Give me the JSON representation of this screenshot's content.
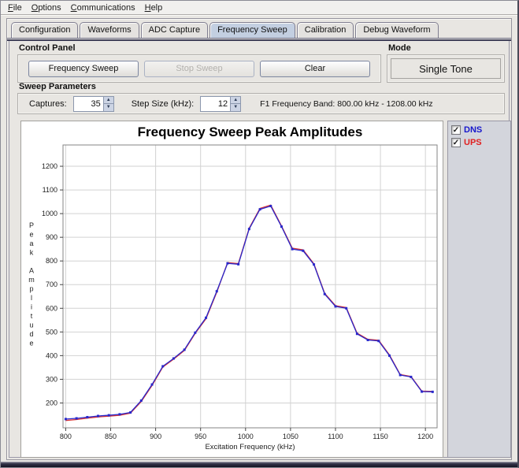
{
  "menu": {
    "items": [
      {
        "label": "File"
      },
      {
        "label": "Options"
      },
      {
        "label": "Communications"
      },
      {
        "label": "Help"
      }
    ]
  },
  "tabs": {
    "items": [
      "Configuration",
      "Waveforms",
      "ADC Capture",
      "Frequency Sweep",
      "Calibration",
      "Debug Waveform"
    ],
    "selected": "Frequency Sweep"
  },
  "control_panel": {
    "title": "Control Panel",
    "buttons": [
      {
        "label": "Frequency Sweep",
        "enabled": true
      },
      {
        "label": "Stop Sweep",
        "enabled": false
      },
      {
        "label": "Clear",
        "enabled": true
      }
    ]
  },
  "mode": {
    "title": "Mode",
    "value": "Single Tone"
  },
  "sweep_parameters": {
    "title": "Sweep Parameters",
    "captures_label": "Captures:",
    "captures_value": "35",
    "step_size_label": "Step Size (kHz):",
    "step_size_value": "12",
    "band_text": "F1 Frequency Band: 800.00 kHz - 1208.00 kHz"
  },
  "legend": {
    "items": [
      {
        "label": "DNS",
        "color": "#1616cc",
        "checked": true
      },
      {
        "label": "UPS",
        "color": "#e02020",
        "checked": true
      }
    ]
  },
  "chart_data": {
    "type": "line",
    "title": "Frequency Sweep Peak Amplitudes",
    "xlabel": "Excitation Frequency (kHz)",
    "ylabel": "Peak Amplitude",
    "xlim": [
      797,
      1213
    ],
    "ylim": [
      95,
      1290
    ],
    "xticks": [
      800,
      850,
      900,
      950,
      1000,
      1050,
      1100,
      1150,
      1200
    ],
    "yticks": [
      200,
      300,
      400,
      500,
      600,
      700,
      800,
      900,
      1000,
      1100,
      1200
    ],
    "grid": true,
    "legend_position": "top-right-panel",
    "x": [
      800,
      812,
      824,
      836,
      848,
      860,
      872,
      884,
      896,
      908,
      920,
      932,
      944,
      956,
      968,
      980,
      992,
      1004,
      1016,
      1028,
      1040,
      1052,
      1064,
      1076,
      1088,
      1100,
      1112,
      1124,
      1136,
      1148,
      1160,
      1172,
      1184,
      1196,
      1208
    ],
    "series": [
      {
        "name": "DNS",
        "color": "#2828cc",
        "values": [
          132,
          135,
          140,
          145,
          148,
          152,
          160,
          210,
          278,
          355,
          388,
          425,
          497,
          560,
          672,
          790,
          786,
          935,
          1018,
          1032,
          945,
          850,
          843,
          785,
          660,
          608,
          600,
          492,
          466,
          462,
          400,
          318,
          310,
          248,
          247
        ]
      },
      {
        "name": "UPS",
        "color": "#d83030",
        "values": [
          126,
          130,
          136,
          141,
          144,
          148,
          157,
          206,
          274,
          352,
          385,
          422,
          494,
          556,
          668,
          793,
          789,
          938,
          1022,
          1036,
          948,
          854,
          847,
          788,
          663,
          611,
          603,
          495,
          469,
          465,
          403,
          320,
          312,
          250,
          249
        ]
      }
    ]
  }
}
